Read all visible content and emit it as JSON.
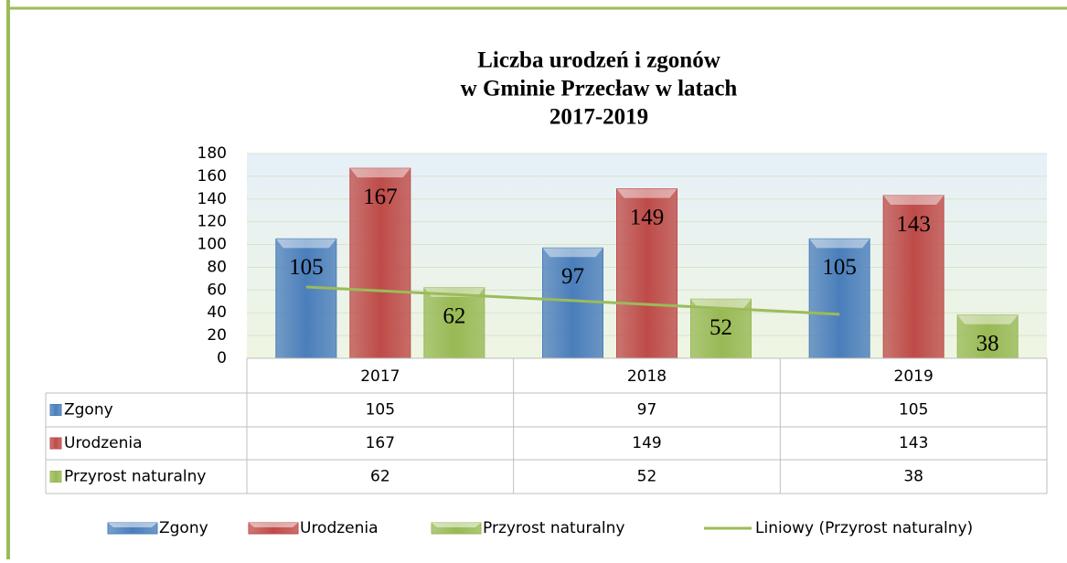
{
  "chart_data": {
    "type": "bar",
    "title": [
      "Liczba urodzeń i zgonów",
      "w Gminie Przecław w latach",
      "2017-2019"
    ],
    "categories": [
      "2017",
      "2018",
      "2019"
    ],
    "series": [
      {
        "name": "Zgony",
        "color": "#4a7ebb",
        "values": [
          105,
          97,
          105
        ]
      },
      {
        "name": "Urodzenia",
        "color": "#be4b48",
        "values": [
          167,
          149,
          143
        ]
      },
      {
        "name": "Przyrost naturalny",
        "color": "#98b954",
        "values": [
          62,
          52,
          38
        ]
      }
    ],
    "trendline": {
      "name": "Liniowy (Przyrost naturalny)",
      "color": "#9bbb59",
      "values": [
        62.7,
        50.7,
        38.7
      ]
    },
    "ylim": [
      0,
      180
    ],
    "yticks": [
      0,
      20,
      40,
      60,
      80,
      100,
      120,
      140,
      160,
      180
    ],
    "grid": true
  }
}
